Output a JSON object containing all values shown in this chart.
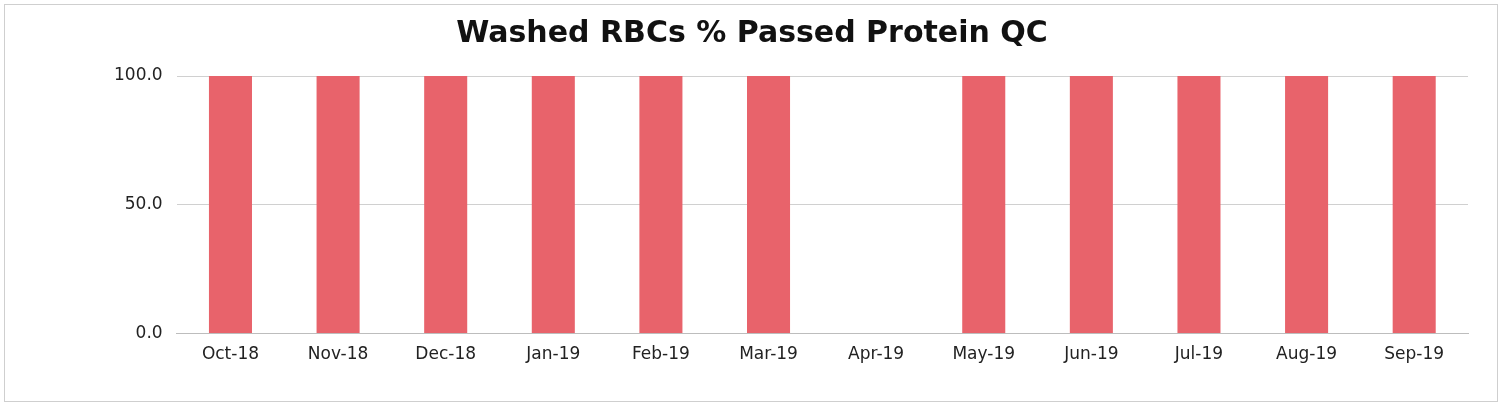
{
  "chart_data": {
    "type": "bar",
    "title": "Washed RBCs % Passed Protein QC",
    "categories": [
      "Oct-18",
      "Nov-18",
      "Dec-18",
      "Jan-19",
      "Feb-19",
      "Mar-19",
      "Apr-19",
      "May-19",
      "Jun-19",
      "Jul-19",
      "Aug-19",
      "Sep-19"
    ],
    "values": [
      100,
      100,
      100,
      100,
      100,
      100,
      null,
      100,
      100,
      100,
      100,
      100
    ],
    "color": "#e8636b",
    "ylim": [
      0,
      100
    ],
    "yticks": [
      {
        "value": 0,
        "label": "0.0"
      },
      {
        "value": 50,
        "label": "50.0"
      },
      {
        "value": 100,
        "label": "100.0"
      }
    ],
    "grid": "y",
    "legend": false
  }
}
